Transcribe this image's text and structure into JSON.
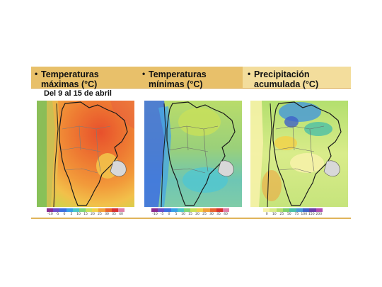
{
  "date_range": "Del 9 al 15 de abril",
  "panels": [
    {
      "bullet": "•",
      "title_line1": "Temperaturas",
      "title_line2": "máximas (°C)",
      "legend_ticks": [
        "-10",
        "-5",
        "0",
        "5",
        "10",
        "15",
        "20",
        "25",
        "30",
        "35",
        "40"
      ],
      "legend_colors": [
        "#8a2b8f",
        "#6b4fc9",
        "#3d6fe0",
        "#3aa0e6",
        "#4cc6c6",
        "#7fd67a",
        "#c8e05a",
        "#f2d24a",
        "#f2a03a",
        "#e8642f",
        "#d8322f",
        "#e07fa6"
      ]
    },
    {
      "bullet": "•",
      "title_line1": "Temperaturas",
      "title_line2": "mínimas (°C)",
      "legend_ticks": [
        "-10",
        "-5",
        "0",
        "5",
        "10",
        "15",
        "20",
        "25",
        "30",
        "35",
        "40"
      ],
      "legend_colors": [
        "#8a2b8f",
        "#6b4fc9",
        "#3d6fe0",
        "#3aa0e6",
        "#4cc6c6",
        "#7fd67a",
        "#c8e05a",
        "#f2d24a",
        "#f2a03a",
        "#e8642f",
        "#d8322f",
        "#e07fa6"
      ]
    },
    {
      "bullet": "•",
      "title_line1": "Precipitación",
      "title_line2": "acumulada (°C)",
      "legend_ticks": [
        "0",
        "10",
        "25",
        "50",
        "75",
        "100",
        "150",
        "200"
      ],
      "legend_colors": [
        "#f6f2a8",
        "#d9ec8a",
        "#b3df6e",
        "#7fcf6a",
        "#4cbfa6",
        "#4a9bd6",
        "#3f62c8",
        "#6a3fa8",
        "#b04db0"
      ]
    }
  ],
  "colors": {
    "header_bg": "#e8c06a",
    "header_bg_right": "#f3dd9c",
    "rule": "#d9a84a",
    "country_line": "#1a1a1a",
    "province_line": "#8a8a8a",
    "neighbor_fill": "#d3d3d3"
  }
}
